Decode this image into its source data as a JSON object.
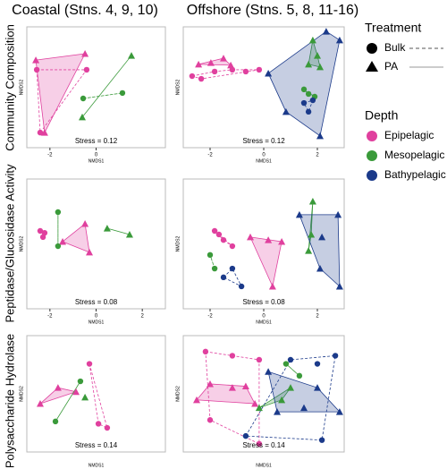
{
  "column_titles": [
    "Coastal (Stns. 4, 9, 10)",
    "Offshore (Stns. 5, 8, 11-16)"
  ],
  "row_titles": [
    "Community Composition",
    "Peptidase/Glucosidase Activity",
    "Polysaccharide Hydrolase"
  ],
  "legend": {
    "treatment_title": "Treatment",
    "treatments": [
      "Bulk",
      "PA"
    ],
    "depth_title": "Depth",
    "depths": [
      "Epipelagic",
      "Mesopelagic",
      "Bathypelagic"
    ],
    "depth_colors": [
      "#e0409e",
      "#3a9a3a",
      "#1b3a8a"
    ]
  },
  "chart_data": [
    {
      "type": "scatter",
      "xlabel": "NMDS1",
      "ylabel": "NMDS2",
      "annotation": "Stress = 0.12",
      "xlim": [
        -3,
        3
      ],
      "ylim": [
        -2,
        2
      ],
      "xticks": [
        -2,
        0
      ],
      "series": [
        {
          "color": "#e0409e",
          "marker": "triangle",
          "x": [
            -2.61,
            -0.48,
            -2.23
          ],
          "y": [
            0.9,
            1.11,
            -1.5
          ]
        },
        {
          "color": "#e0409e",
          "marker": "circle",
          "x": [
            -2.57,
            -0.41,
            -2.42
          ],
          "y": [
            0.58,
            0.58,
            -1.5
          ]
        },
        {
          "color": "#3a9a3a",
          "marker": "triangle",
          "x": [
            1.53,
            -0.6
          ],
          "y": [
            1.05,
            -0.99
          ]
        },
        {
          "color": "#3a9a3a",
          "marker": "circle",
          "x": [
            -0.56,
            1.14
          ],
          "y": [
            -0.37,
            -0.19
          ]
        }
      ]
    },
    {
      "type": "scatter",
      "xlabel": "NMDS1",
      "ylabel": "NMDS2",
      "annotation": "Stress = 0.12",
      "xlim": [
        -3,
        3
      ],
      "ylim": [
        -2,
        2
      ],
      "xticks": [
        -2,
        0,
        2
      ],
      "series": [
        {
          "color": "#e0409e",
          "marker": "triangle",
          "x": [
            -2.43,
            -1.97,
            -1.5,
            -1.23
          ],
          "y": [
            0.76,
            0.81,
            0.96,
            0.73
          ]
        },
        {
          "color": "#e0409e",
          "marker": "circle",
          "x": [
            -2.67,
            -2.33,
            -1.83,
            -1.17,
            -0.67,
            -0.17
          ],
          "y": [
            0.37,
            0.28,
            0.52,
            0.58,
            0.52,
            0.58
          ]
        },
        {
          "color": "#3a9a3a",
          "marker": "triangle",
          "x": [
            1.83,
            2.1,
            1.67,
            2.0
          ],
          "y": [
            1.56,
            0.67,
            0.76,
            1.05
          ]
        },
        {
          "color": "#3a9a3a",
          "marker": "circle",
          "x": [
            1.5,
            1.67,
            1.9
          ],
          "y": [
            -0.07,
            -0.22,
            -0.31
          ]
        },
        {
          "color": "#1b3a8a",
          "marker": "triangle",
          "x": [
            2.33,
            2.83,
            0.17,
            0.83,
            2.1
          ],
          "y": [
            1.85,
            1.56,
            0.46,
            -0.81,
            -1.61
          ]
        },
        {
          "color": "#1b3a8a",
          "marker": "circle",
          "x": [
            1.5,
            1.83,
            1.67
          ],
          "y": [
            -0.52,
            -0.43,
            -0.81
          ]
        }
      ]
    },
    {
      "type": "scatter",
      "xlabel": "NMDS1",
      "ylabel": "NMDS2",
      "annotation": "Stress = 0.08",
      "xlim": [
        -3,
        3
      ],
      "ylim": [
        -2,
        2
      ],
      "xticks": [
        -2,
        0,
        2
      ],
      "series": [
        {
          "color": "#e0409e",
          "marker": "triangle",
          "x": [
            -1.45,
            -0.48,
            -0.29
          ],
          "y": [
            0.07,
            0.62,
            -0.26
          ]
        },
        {
          "color": "#e0409e",
          "marker": "circle",
          "x": [
            -2.42,
            -2.3,
            -2.23
          ],
          "y": [
            0.4,
            0.21,
            0.34
          ]
        },
        {
          "color": "#3a9a3a",
          "marker": "triangle",
          "x": [
            0.48,
            1.45
          ],
          "y": [
            0.48,
            0.29
          ]
        },
        {
          "color": "#3a9a3a",
          "marker": "circle",
          "x": [
            -1.65,
            -1.65
          ],
          "y": [
            0.98,
            -0.07
          ]
        }
      ]
    },
    {
      "type": "scatter",
      "xlabel": "NMDS1",
      "ylabel": "NMDS2",
      "annotation": "Stress = 0.08",
      "xlim": [
        -3,
        3
      ],
      "ylim": [
        -2,
        2
      ],
      "xticks": [
        -2,
        0,
        2
      ],
      "series": [
        {
          "color": "#e0409e",
          "marker": "triangle",
          "x": [
            -0.5,
            0.17,
            0.33,
            0.67
          ],
          "y": [
            0.21,
            0.12,
            -1.31,
            0.07
          ]
        },
        {
          "color": "#e0409e",
          "marker": "circle",
          "x": [
            -1.83,
            -1.67,
            -1.5,
            -1.17
          ],
          "y": [
            0.4,
            0.29,
            0.12,
            -0.07
          ]
        },
        {
          "color": "#3a9a3a",
          "marker": "triangle",
          "x": [
            1.77,
            1.83,
            1.67
          ],
          "y": [
            0.29,
            1.31,
            -0.21
          ]
        },
        {
          "color": "#3a9a3a",
          "marker": "circle",
          "x": [
            -1.83,
            -2.0
          ],
          "y": [
            -0.76,
            -0.34
          ]
        },
        {
          "color": "#1b3a8a",
          "marker": "triangle",
          "x": [
            1.33,
            2.17,
            2.77,
            2.83,
            2.1
          ],
          "y": [
            0.9,
            0.21,
            0.9,
            -1.31,
            -0.76
          ]
        },
        {
          "color": "#1b3a8a",
          "marker": "circle",
          "x": [
            -1.17,
            -0.83,
            -1.5
          ],
          "y": [
            -0.76,
            -1.31,
            -1.03
          ]
        }
      ]
    },
    {
      "type": "scatter",
      "xlabel": "NMDS1",
      "ylabel": "NMDS2",
      "annotation": "Stress = 0.14",
      "xlim": [
        -3,
        3
      ],
      "ylim": [
        -2,
        2
      ],
      "series": [
        {
          "color": "#e0409e",
          "marker": "triangle",
          "x": [
            -2.42,
            -1.65,
            -0.87
          ],
          "y": [
            -0.34,
            0.21,
            0.07
          ]
        },
        {
          "color": "#e0409e",
          "marker": "circle",
          "x": [
            -0.29,
            0.1,
            0.48
          ],
          "y": [
            1.03,
            -1.03,
            -1.17
          ]
        },
        {
          "color": "#3a9a3a",
          "marker": "triangle",
          "x": [
            -0.48
          ],
          "y": [
            -0.12
          ]
        },
        {
          "color": "#3a9a3a",
          "marker": "circle",
          "x": [
            -0.68,
            -1.76
          ],
          "y": [
            0.43,
            -0.95
          ]
        }
      ]
    },
    {
      "type": "scatter",
      "xlabel": "NMDS1",
      "ylabel": "NMDS2",
      "annotation": "Stress = 0.14",
      "xlim": [
        -3,
        3
      ],
      "ylim": [
        -2,
        2
      ],
      "series": [
        {
          "color": "#e0409e",
          "marker": "triangle",
          "x": [
            -2.0,
            -1.17,
            -0.67,
            -0.33,
            -2.5
          ],
          "y": [
            0.34,
            0.21,
            0.26,
            -0.34,
            -0.21
          ]
        },
        {
          "color": "#e0409e",
          "marker": "circle",
          "x": [
            -2.17,
            -1.17,
            -0.17,
            -2.0,
            -0.17
          ],
          "y": [
            1.45,
            1.31,
            1.17,
            -0.9,
            -1.72
          ]
        },
        {
          "color": "#3a9a3a",
          "marker": "triangle",
          "x": [
            -0.17,
            0.67,
            1.0
          ],
          "y": [
            -0.48,
            -0.21,
            0.21
          ]
        },
        {
          "color": "#3a9a3a",
          "marker": "circle",
          "x": [
            0.83,
            1.33
          ],
          "y": [
            1.03,
            0.62
          ]
        },
        {
          "color": "#1b3a8a",
          "marker": "triangle",
          "x": [
            0.17,
            2.0,
            1.5,
            0.5,
            2.83
          ],
          "y": [
            0.76,
            0.21,
            -0.48,
            -0.62,
            -0.62
          ]
        },
        {
          "color": "#1b3a8a",
          "marker": "circle",
          "x": [
            1.0,
            2.0,
            2.67,
            2.17,
            -0.67
          ],
          "y": [
            1.17,
            1.03,
            1.31,
            -1.59,
            -1.45
          ]
        }
      ]
    }
  ]
}
